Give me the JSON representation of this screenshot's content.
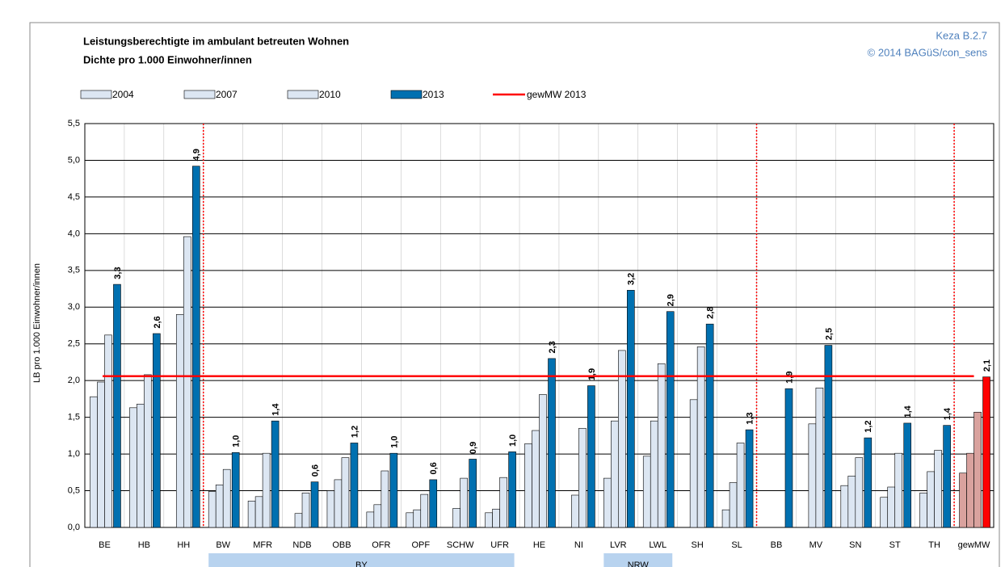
{
  "chart_data": {
    "type": "bar",
    "title": "Leistungsberechtigte im ambulant betreuten Wohnen",
    "subtitle": "Dichte pro 1.000 Einwohner/innen",
    "annotations": [
      "Keza B.2.7",
      "© 2014 BAGüS/con_sens"
    ],
    "y_label": "LB pro 1.000 Einwohner/innen",
    "categories": [
      "BE",
      "HB",
      "HH",
      "BW",
      "MFR",
      "NDB",
      "OBB",
      "OFR",
      "OPF",
      "SCHW",
      "UFR",
      "HE",
      "NI",
      "LVR",
      "LWL",
      "SH",
      "SL",
      "BB",
      "MV",
      "SN",
      "ST",
      "TH",
      "gewMW"
    ],
    "series": [
      {
        "name": "2004",
        "color": "#dce6f2",
        "values": [
          1.78,
          1.63,
          null,
          0.49,
          0.36,
          null,
          0.5,
          0.21,
          0.2,
          null,
          0.2,
          1.14,
          null,
          0.67,
          0.97,
          null,
          0.24,
          null,
          null,
          0.57,
          0.41,
          0.47,
          0.74
        ]
      },
      {
        "name": "2007",
        "color": "#dce6f2",
        "values": [
          1.98,
          1.68,
          2.9,
          0.58,
          0.42,
          0.19,
          0.65,
          0.31,
          0.24,
          0.26,
          0.25,
          1.32,
          0.44,
          1.45,
          1.45,
          1.74,
          0.61,
          null,
          1.41,
          0.7,
          0.55,
          0.76,
          1.01
        ]
      },
      {
        "name": "2010",
        "color": "#dce6f2",
        "values": [
          2.62,
          2.08,
          3.96,
          0.79,
          1.01,
          0.47,
          0.95,
          0.77,
          0.45,
          0.67,
          0.68,
          1.81,
          1.35,
          2.41,
          2.23,
          2.46,
          1.15,
          null,
          1.9,
          0.95,
          1.01,
          1.05,
          1.57
        ]
      },
      {
        "name": "2013",
        "color": "#0070b0",
        "values": [
          3.31,
          2.64,
          4.92,
          1.02,
          1.45,
          0.62,
          1.15,
          1.01,
          0.65,
          0.93,
          1.03,
          2.3,
          1.93,
          3.23,
          2.94,
          2.77,
          1.33,
          1.89,
          2.48,
          1.22,
          1.42,
          1.39,
          2.05
        ],
        "value_labels": [
          "3,3",
          "2,6",
          "4,9",
          "1,0",
          "1,4",
          "0,6",
          "1,2",
          "1,0",
          "0,6",
          "0,9",
          "1,0",
          "2,3",
          "1,9",
          "3,2",
          "2,9",
          "2,8",
          "1,3",
          "1,9",
          "2,5",
          "1,2",
          "1,4",
          "1,4",
          "2,1"
        ]
      }
    ],
    "highlight_category": "gewMW",
    "highlight_colors": [
      "#d9a29e",
      "#d9a29e",
      "#d9a29e",
      "#ff0000"
    ],
    "reference_line": {
      "name": "gewMW 2013",
      "value": 2.06,
      "color": "#ff0000"
    },
    "separators_after": [
      "HH",
      "SL",
      "TH"
    ],
    "groups": [
      {
        "label": "BY",
        "from": "BW",
        "to": "UFR"
      },
      {
        "label": "NRW",
        "from": "LVR",
        "to": "LWL"
      }
    ],
    "ylim": [
      0,
      5.5
    ],
    "yticks": [
      {
        "value": 0,
        "label": "0,0"
      },
      {
        "value": 0.5,
        "label": "0,5"
      },
      {
        "value": 1,
        "label": "1,0"
      },
      {
        "value": 1.5,
        "label": "1,5"
      },
      {
        "value": 2,
        "label": "2,0"
      },
      {
        "value": 2.5,
        "label": "2,5"
      },
      {
        "value": 3,
        "label": "3,0"
      },
      {
        "value": 3.5,
        "label": "3,5"
      },
      {
        "value": 4,
        "label": "4,0"
      },
      {
        "value": 4.5,
        "label": "4,5"
      },
      {
        "value": 5,
        "label": "5,0"
      },
      {
        "value": 5.5,
        "label": "5,5"
      }
    ],
    "grid": true
  }
}
